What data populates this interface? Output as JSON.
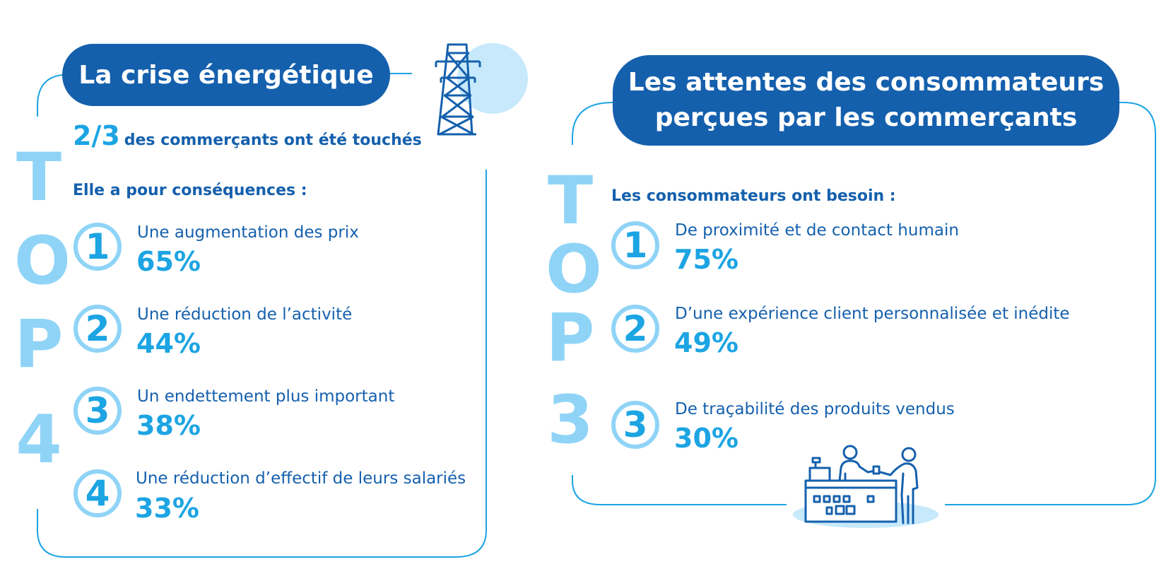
{
  "colors": {
    "dark_blue": "#1560ad",
    "accent_blue": "#1ca4e3",
    "light_blue": "#8fd4f7",
    "pale_blue": "#c7e9fb"
  },
  "left": {
    "title": "La crise énergétique",
    "stat_value": "2/3",
    "stat_text": "des commerçants ont été touchés",
    "intro": "Elle a pour conséquences :",
    "top_letters": [
      "T",
      "O",
      "P",
      "4"
    ],
    "items": [
      {
        "number": "1",
        "label": "Une augmentation des prix",
        "percent": "65%"
      },
      {
        "number": "2",
        "label": "Une réduction de l’activité",
        "percent": "44%"
      },
      {
        "number": "3",
        "label": "Un endettement plus important",
        "percent": "38%"
      },
      {
        "number": "4",
        "label": "Une réduction d’effectif de leurs salariés",
        "percent": "33%"
      }
    ],
    "icon": "power-pylon-icon"
  },
  "right": {
    "title_line1": "Les attentes des consommateurs",
    "title_line2": "perçues par les commerçants",
    "intro": "Les consommateurs ont besoin :",
    "top_letters": [
      "T",
      "O",
      "P",
      "3"
    ],
    "items": [
      {
        "number": "1",
        "label": "De proximité et de contact humain",
        "percent": "75%"
      },
      {
        "number": "2",
        "label": "D’une expérience client personnalisée et inédite",
        "percent": "49%"
      },
      {
        "number": "3",
        "label": "De traçabilité des produits vendus",
        "percent": "30%"
      }
    ],
    "icon": "shop-counter-icon"
  }
}
